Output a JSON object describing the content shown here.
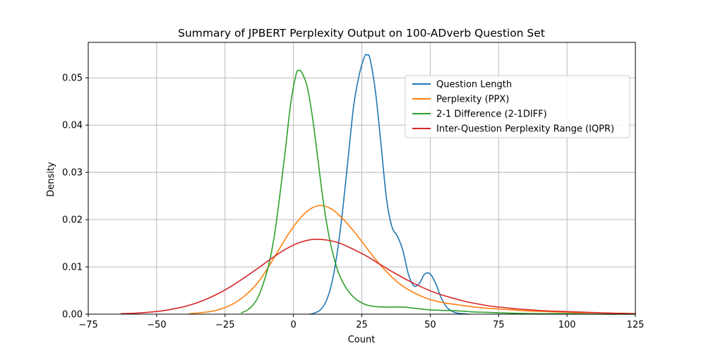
{
  "chart_data": {
    "type": "line",
    "title": "Summary of JPBERT Perplexity Output on 100-ADverb Question Set",
    "xlabel": "Count",
    "ylabel": "Density",
    "xlim": [
      -75,
      125
    ],
    "ylim": [
      0,
      0.0575
    ],
    "xticks": [
      -75,
      -50,
      -25,
      0,
      25,
      50,
      75,
      100,
      125
    ],
    "xtick_labels": [
      "−75",
      "−50",
      "−25",
      "0",
      "25",
      "50",
      "75",
      "100",
      "125"
    ],
    "yticks": [
      0,
      0.01,
      0.02,
      0.03,
      0.04,
      0.05
    ],
    "ytick_labels": [
      "0.00",
      "0.01",
      "0.02",
      "0.03",
      "0.04",
      "0.05"
    ],
    "grid": true,
    "legend_position": "top-right",
    "series": [
      {
        "name": "Question Length",
        "color": "#1f77b4",
        "x": [
          6,
          8,
          10,
          12,
          14,
          16,
          18,
          20,
          22,
          24,
          26,
          27,
          28,
          30,
          32,
          34,
          36,
          38,
          40,
          42,
          44,
          46,
          48,
          50,
          52,
          54,
          56,
          58,
          60,
          62,
          64
        ],
        "y": [
          0,
          0.0003,
          0.001,
          0.0028,
          0.0065,
          0.013,
          0.022,
          0.033,
          0.044,
          0.0505,
          0.0545,
          0.0548,
          0.054,
          0.047,
          0.036,
          0.0245,
          0.0185,
          0.0165,
          0.0135,
          0.0085,
          0.006,
          0.0065,
          0.0085,
          0.0085,
          0.0065,
          0.0035,
          0.0015,
          0.0006,
          0.0002,
          0.0001,
          0
        ]
      },
      {
        "name": "Perplexity (PPX)",
        "color": "#ff7f0e",
        "x": [
          -38,
          -34,
          -30,
          -26,
          -22,
          -18,
          -14,
          -10,
          -6,
          -2,
          2,
          6,
          10,
          14,
          18,
          22,
          26,
          30,
          34,
          38,
          42,
          46,
          50,
          55,
          60,
          65,
          70,
          75,
          80,
          85,
          90,
          95,
          100,
          105,
          110,
          115,
          120,
          125
        ],
        "y": [
          0.0001,
          0.0003,
          0.0006,
          0.0012,
          0.0022,
          0.0038,
          0.006,
          0.0092,
          0.013,
          0.0168,
          0.02,
          0.0222,
          0.023,
          0.0222,
          0.0202,
          0.0176,
          0.0146,
          0.0116,
          0.009,
          0.0068,
          0.0052,
          0.004,
          0.0031,
          0.0024,
          0.002,
          0.0016,
          0.0013,
          0.0011,
          0.0009,
          0.0007,
          0.0006,
          0.0005,
          0.0004,
          0.0003,
          0.0003,
          0.0002,
          0.0002,
          0.0001
        ]
      },
      {
        "name": "2-1 Difference (2-1DIFF)",
        "color": "#2ca02c",
        "x": [
          -19,
          -17,
          -15,
          -13,
          -11,
          -9,
          -7,
          -5,
          -3,
          -1,
          1,
          2,
          3,
          5,
          7,
          9,
          11,
          13,
          15,
          17,
          19,
          21,
          23,
          25,
          27,
          30,
          35,
          40,
          45,
          50,
          55,
          60,
          65,
          70,
          75,
          80,
          90,
          100,
          110,
          125
        ],
        "y": [
          0.0003,
          0.0008,
          0.0018,
          0.0035,
          0.0065,
          0.0105,
          0.0165,
          0.025,
          0.0345,
          0.0445,
          0.0508,
          0.0515,
          0.0512,
          0.0482,
          0.0415,
          0.0325,
          0.0235,
          0.0165,
          0.0115,
          0.008,
          0.0058,
          0.0042,
          0.0031,
          0.0024,
          0.0019,
          0.0016,
          0.0015,
          0.0015,
          0.0012,
          0.0009,
          0.0008,
          0.0007,
          0.0005,
          0.0004,
          0.0003,
          0.0002,
          0.0001,
          0.0001,
          0,
          0
        ]
      },
      {
        "name": "Inter-Question Perplexity Range (IQPR)",
        "color": "#d62728",
        "x": [
          -63,
          -58,
          -53,
          -48,
          -43,
          -38,
          -33,
          -28,
          -23,
          -18,
          -13,
          -8,
          -3,
          2,
          7,
          12,
          17,
          22,
          27,
          32,
          37,
          42,
          47,
          52,
          57,
          62,
          67,
          72,
          77,
          82,
          87,
          92,
          97,
          102,
          107,
          112,
          117,
          125
        ],
        "y": [
          0.0001,
          0.0002,
          0.0004,
          0.0007,
          0.0012,
          0.0019,
          0.0029,
          0.0042,
          0.0058,
          0.0077,
          0.0097,
          0.0118,
          0.0137,
          0.0151,
          0.0158,
          0.0157,
          0.015,
          0.0137,
          0.0122,
          0.0104,
          0.0087,
          0.0071,
          0.0057,
          0.0045,
          0.0036,
          0.0028,
          0.0022,
          0.0017,
          0.0014,
          0.0011,
          0.0009,
          0.0007,
          0.0006,
          0.0005,
          0.0004,
          0.0003,
          0.0002,
          0.0001
        ]
      }
    ]
  }
}
